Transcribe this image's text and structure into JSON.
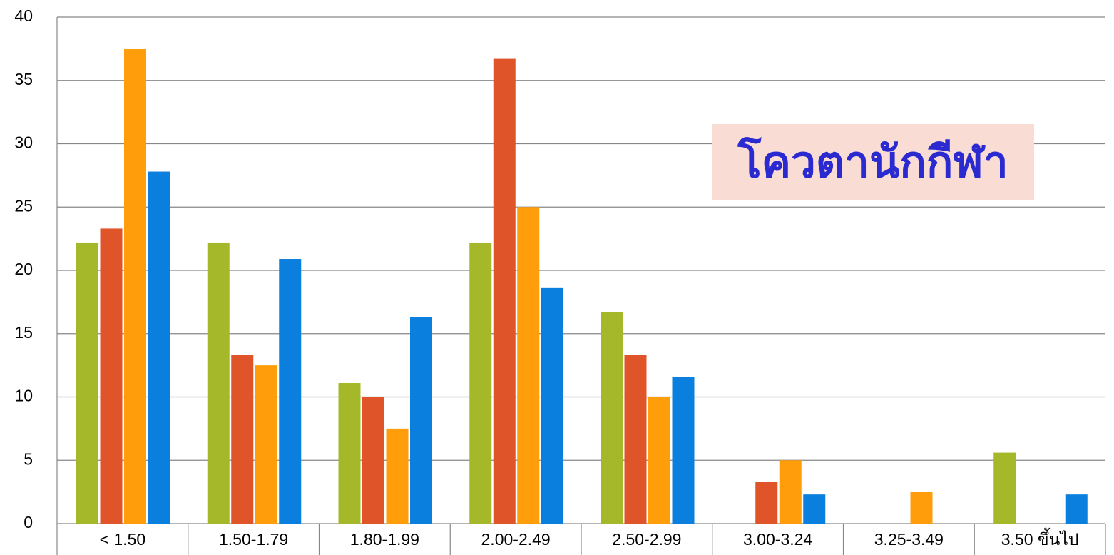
{
  "chart_data": {
    "type": "bar",
    "annotation": "โควตานักกีฬา",
    "categories": [
      "< 1.50",
      "1.50-1.79",
      "1.80-1.99",
      "2.00-2.49",
      "2.50-2.99",
      "3.00-3.24",
      "3.25-3.49",
      "3.50  ขึ้นไป"
    ],
    "series": [
      {
        "color": "#a5b82a",
        "values": [
          22.2,
          22.2,
          11.1,
          22.2,
          16.7,
          0,
          0,
          5.6
        ]
      },
      {
        "color": "#e0542a",
        "values": [
          23.3,
          13.3,
          10,
          36.7,
          13.3,
          3.3,
          0,
          0
        ]
      },
      {
        "color": "#ff9e0a",
        "values": [
          37.5,
          12.5,
          7.5,
          25,
          10,
          5,
          2.5,
          0
        ]
      },
      {
        "color": "#0a7fdd",
        "values": [
          27.8,
          20.9,
          16.3,
          18.6,
          11.6,
          2.3,
          0,
          2.3
        ]
      }
    ],
    "ylim": [
      0,
      40
    ],
    "yticks": [
      0,
      5,
      10,
      15,
      20,
      25,
      30,
      35,
      40
    ],
    "grid": true
  }
}
